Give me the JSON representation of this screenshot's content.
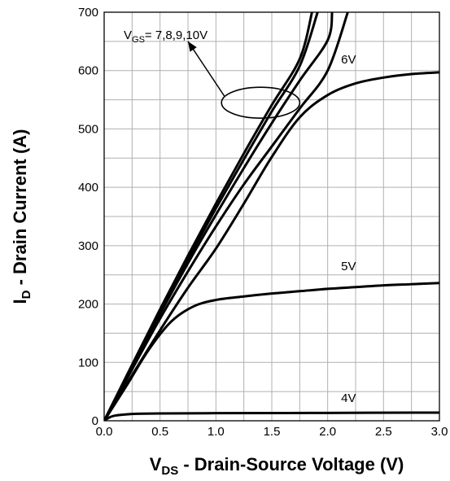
{
  "chart_data": {
    "type": "line",
    "x_axis": {
      "label_main": "V",
      "label_sub": "DS",
      "label_rest": " - Drain-Source Voltage (V)",
      "range": [
        0,
        3.0
      ],
      "ticks": [
        "0.0",
        "0.5",
        "1.0",
        "1.5",
        "2.0",
        "2.5",
        "3.0"
      ],
      "tick_values": [
        0,
        0.5,
        1.0,
        1.5,
        2.0,
        2.5,
        3.0
      ],
      "minor_step": 0.25
    },
    "y_axis": {
      "label_main": "I",
      "label_sub": "D",
      "label_rest": " - Drain Current (A)",
      "range": [
        0,
        700
      ],
      "ticks": [
        "0",
        "100",
        "200",
        "300",
        "400",
        "500",
        "600",
        "700"
      ],
      "tick_values": [
        0,
        100,
        200,
        300,
        400,
        500,
        600,
        700
      ],
      "minor_step": 50
    },
    "grid": true,
    "series": [
      {
        "name": "10V",
        "x": [
          0,
          0.25,
          0.5,
          0.75,
          1.0,
          1.25,
          1.5,
          1.75,
          1.86
        ],
        "y": [
          0,
          96,
          191,
          283,
          372,
          458,
          541,
          620,
          700
        ]
      },
      {
        "name": "9V",
        "x": [
          0,
          0.25,
          0.5,
          0.75,
          1.0,
          1.25,
          1.5,
          1.75,
          1.91
        ],
        "y": [
          0,
          94,
          187,
          277,
          364,
          448,
          530,
          608,
          700
        ]
      },
      {
        "name": "8V",
        "x": [
          0,
          0.25,
          0.5,
          0.75,
          1.0,
          1.25,
          1.5,
          1.75,
          2.0,
          2.04
        ],
        "y": [
          0,
          92,
          183,
          270,
          353,
          433,
          510,
          583,
          652,
          700
        ]
      },
      {
        "name": "7V",
        "x": [
          0,
          0.25,
          0.5,
          0.75,
          1.0,
          1.25,
          1.5,
          1.75,
          2.0,
          2.18
        ],
        "y": [
          0,
          88,
          175,
          256,
          333,
          405,
          470,
          535,
          600,
          700
        ]
      },
      {
        "name": "6V",
        "x": [
          0,
          0.25,
          0.5,
          0.75,
          1.0,
          1.25,
          1.5,
          1.75,
          2.0,
          2.25,
          2.5,
          2.75,
          3.0
        ],
        "y": [
          0,
          78,
          155,
          228,
          295,
          372,
          452,
          520,
          558,
          578,
          588,
          594,
          597
        ]
      },
      {
        "name": "5V",
        "x": [
          0,
          0.2,
          0.4,
          0.6,
          0.8,
          1.0,
          1.25,
          1.5,
          1.75,
          2.0,
          2.25,
          2.5,
          2.75,
          3.0
        ],
        "y": [
          0,
          60,
          122,
          170,
          196,
          207,
          213,
          218,
          222,
          226,
          229,
          232,
          234,
          236
        ]
      },
      {
        "name": "4V",
        "x": [
          0,
          0.05,
          0.1,
          0.2,
          0.3,
          0.5,
          1.0,
          2.0,
          3.0
        ],
        "y": [
          0,
          6,
          9,
          11,
          12,
          12.5,
          13,
          13.5,
          14
        ]
      }
    ],
    "curve_labels": [
      {
        "text": "6V",
        "x": 2.12,
        "y": 612
      },
      {
        "text": "5V",
        "x": 2.12,
        "y": 258
      },
      {
        "text": "4V",
        "x": 2.12,
        "y": 32
      }
    ],
    "annotation": {
      "text_main": "V",
      "text_sub": "GS",
      "text_rest": "= 7,8,9,10V",
      "arrow_from": [
        1.08,
        555
      ],
      "arrow_to": [
        0.75,
        650
      ],
      "ellipse_center": [
        1.4,
        545
      ],
      "ellipse_rx": 0.35,
      "ellipse_ry": 19
    },
    "line_color": "#000000",
    "grid_color": "#b0b0b0"
  }
}
